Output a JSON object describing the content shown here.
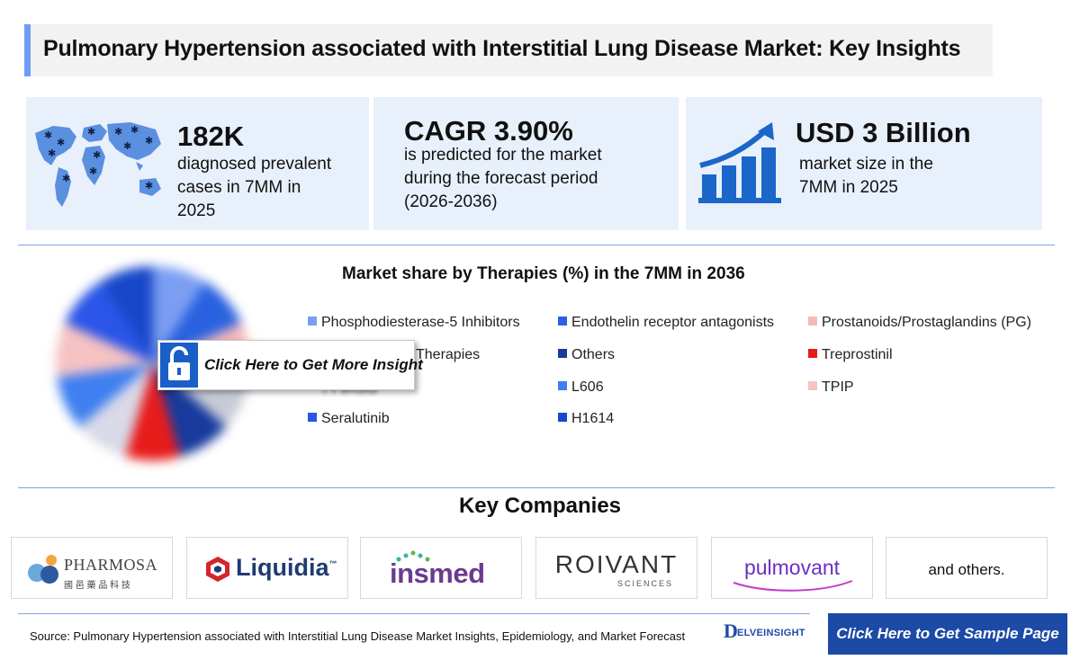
{
  "header": {
    "title": "Pulmonary Hypertension associated with Interstitial Lung Disease Market: Key Insights"
  },
  "stats": [
    {
      "value": "182K",
      "lines": [
        "diagnosed prevalent",
        "cases in 7MM in",
        "2025"
      ],
      "icon": "world-map-icon"
    },
    {
      "value": "CAGR 3.90%",
      "lines": [
        "is predicted for the market",
        "during the forecast period",
        "(2026-2036)"
      ]
    },
    {
      "value": "USD 3 Billion",
      "lines": [
        "market size in the",
        "7MM in 2025"
      ],
      "icon": "growth-chart-icon"
    }
  ],
  "chart_data": {
    "type": "pie",
    "title": "Market share by Therapies (%) in the 7MM in 2036",
    "categories": [
      "Phosphodiesterase-5  Inhibitors",
      "Endothelin receptor antagonists",
      "Prostanoids/Prostaglandins (PG)",
      "Therapies",
      "Others",
      "Treprostinil",
      "TYVASO",
      "L606",
      "TPIP",
      "Seralutinib",
      "H1614"
    ],
    "legend_position": "right",
    "colors": [
      "#7b9ef2",
      "#2962e0",
      "#f7b8b8",
      "#c7cbd6",
      "#173a9c",
      "#e81b1b",
      "#d9d9e8",
      "#3f7ff0",
      "#f6c2c2",
      "#2a55e8",
      "#1848c9"
    ]
  },
  "popup": {
    "text": "Click Here to Get More Insight",
    "icon": "lock-icon"
  },
  "companies": {
    "title": "Key Companies",
    "logos": [
      {
        "name": "PHARMOSA",
        "sub": "國 邑 藥 品 科 技"
      },
      {
        "name": "Liquidia",
        "mark": "™"
      },
      {
        "name": "insmed"
      },
      {
        "name": "ROIVANT",
        "sub": "SCIENCES"
      },
      {
        "name": "pulmovant"
      }
    ],
    "others": "and others."
  },
  "footer": {
    "source": "Source: Pulmonary Hypertension associated with Interstitial Lung Disease Market Insights, Epidemiology, and Market Forecast",
    "brand_initial": "D",
    "brand_rest": "ELVEINSIGHT",
    "sample_label": "Click Here to Get Sample Page"
  }
}
